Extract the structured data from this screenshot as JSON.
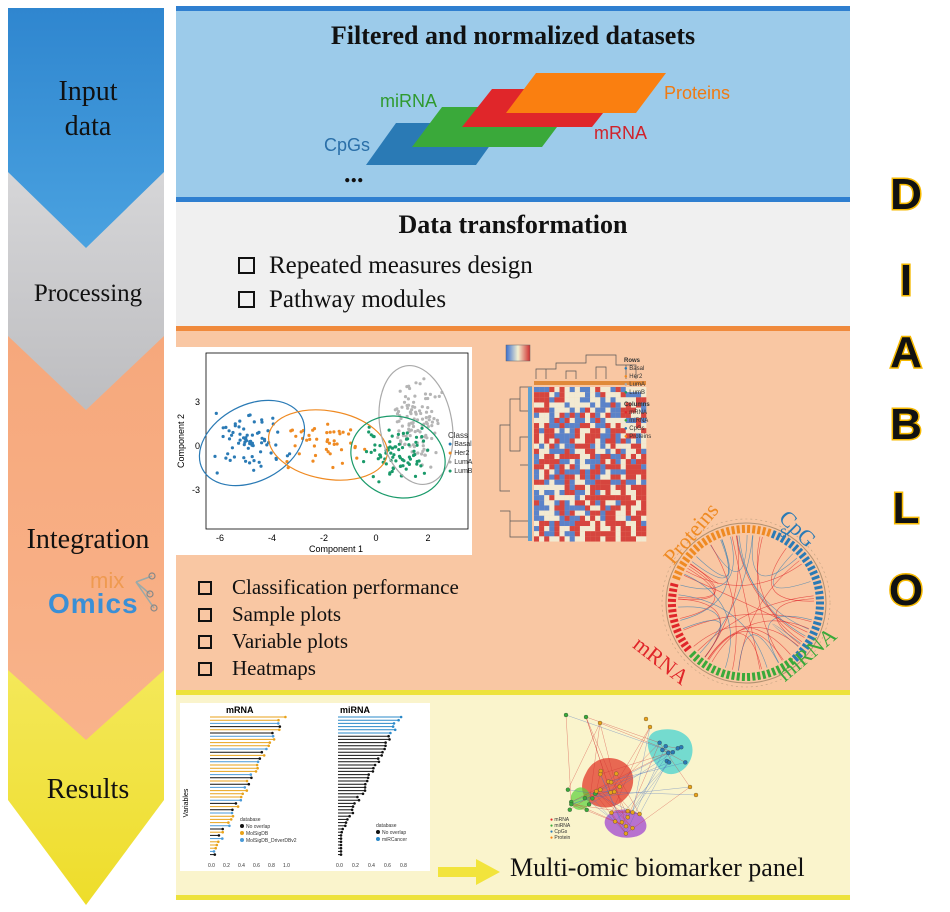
{
  "steps": {
    "input": "Input\ndata",
    "processing": "Processing",
    "integration": "Integration",
    "results": "Results",
    "mixomics_logo": {
      "top": "mix",
      "bottom": "Omics"
    }
  },
  "input_panel": {
    "title": "Filtered and normalized datasets",
    "layers": [
      "CpGs",
      "miRNA",
      "mRNA",
      "Proteins"
    ],
    "ellipsis": "..."
  },
  "processing_panel": {
    "title": "Data transformation",
    "items": [
      "Repeated measures design",
      "Pathway modules"
    ]
  },
  "integration_panel": {
    "items": [
      "Classification performance",
      "Sample plots",
      "Variable plots",
      "Heatmaps"
    ],
    "sample_plot": {
      "xlabel": "Component 1",
      "ylabel": "Component 2",
      "xticks": [
        "-6",
        "-4",
        "-2",
        "0",
        "2"
      ],
      "yticks": [
        "3",
        "0",
        "-3"
      ]
    },
    "heatmap": {
      "class_title": "Class",
      "classes": [
        "Basal",
        "Her2",
        "LumA",
        "LumB"
      ],
      "rows_title": "Rows",
      "rows": [
        "Basal",
        "Her2",
        "LumA",
        "LumB"
      ],
      "columns_title": "Columns",
      "columns": [
        "mRNA",
        "miRNA",
        "CpGs",
        "Proteins"
      ]
    },
    "circos_labels": [
      "Proteins",
      "CpG",
      "s",
      "mRNA",
      "miRNA"
    ]
  },
  "results_panel": {
    "mrna_title": "mRNA",
    "mirna_title": "miRNA",
    "ylabel": "Variables",
    "mrna_xticks": [
      "0.0",
      "0.2",
      "0.4",
      "0.6",
      "0.8",
      "1.0"
    ],
    "mirna_xticks": [
      "0.0",
      "0.2",
      "0.4",
      "0.6",
      "0.8"
    ],
    "mrna_legend_title": "database",
    "mrna_legend": [
      "No overlap",
      "MolSigDB",
      "MolSigDB_DriverDBv2"
    ],
    "mirna_legend_title": "database",
    "mirna_legend": [
      "No overlap",
      "miRCancer"
    ],
    "network_legend": [
      "mRNA",
      "miRNA",
      "CpGs",
      "Protein"
    ],
    "caption": "Multi-omic biomarker panel"
  },
  "brand": {
    "letters": [
      "D",
      "I",
      "A",
      "B",
      "L",
      "O"
    ]
  },
  "colors": {
    "input_blue": "#3a92d4",
    "processing_gray": "#c9c9cc",
    "integration_peach": "#f7a97c",
    "results_yellow": "#f2e43c",
    "cpg": "#2a7ab5",
    "mirna": "#3aa93a",
    "mrna": "#e0262a",
    "proteins": "#fa7f10"
  }
}
